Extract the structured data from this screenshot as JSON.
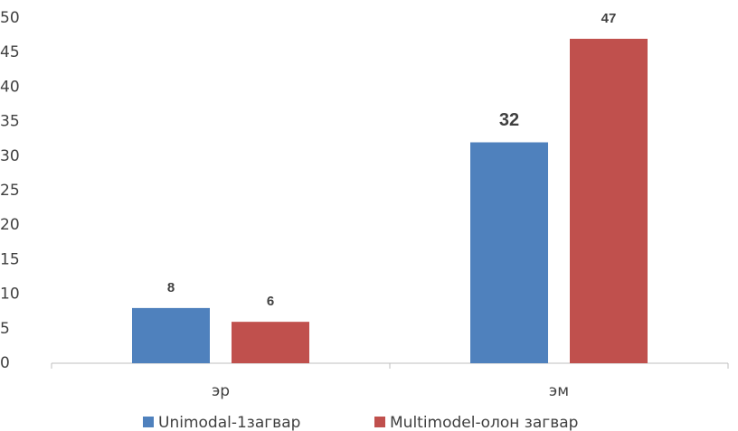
{
  "chart_data": {
    "type": "bar",
    "categories": [
      "эр",
      "эм"
    ],
    "series": [
      {
        "name": "Unimodal-1загвар",
        "color": "#4f81bd",
        "values": [
          8,
          32
        ]
      },
      {
        "name": "Multimodel-олон загвар",
        "color": "#c0504d",
        "values": [
          6,
          47
        ]
      }
    ],
    "ylim": [
      0,
      50
    ],
    "yticks": [
      0,
      5,
      10,
      15,
      20,
      25,
      30,
      35,
      40,
      45,
      50
    ],
    "grid": false,
    "legend": "bottom"
  }
}
